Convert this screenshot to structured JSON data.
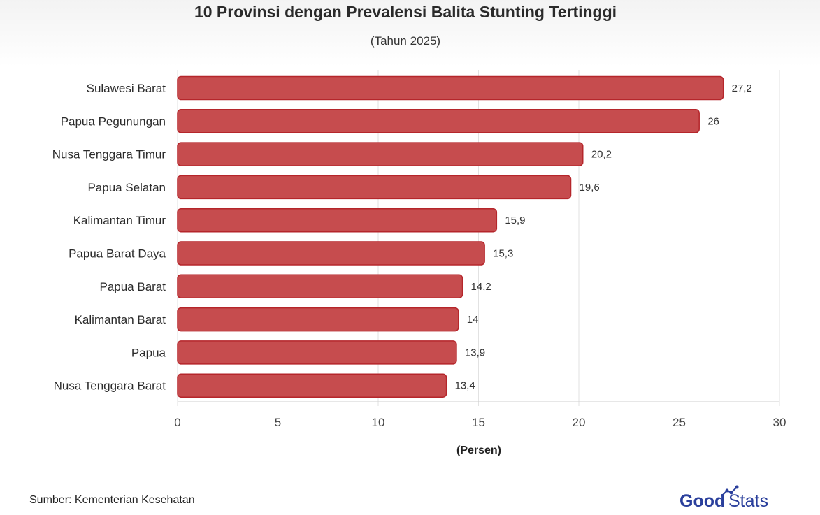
{
  "chart_data": {
    "type": "bar",
    "orientation": "horizontal",
    "title": "10 Provinsi dengan Prevalensi Balita Stunting Tertinggi",
    "subtitle": "(Tahun 2025)",
    "xlabel": "(Persen)",
    "ylabel": "",
    "categories": [
      "Sulawesi Barat",
      "Papua Pegunungan",
      "Nusa Tenggara Timur",
      "Papua Selatan",
      "Kalimantan Timur",
      "Papua Barat Daya",
      "Papua Barat",
      "Kalimantan Barat",
      "Papua",
      "Nusa Tenggara Barat"
    ],
    "values": [
      27.2,
      26,
      20.2,
      19.6,
      15.9,
      15.3,
      14.2,
      14,
      13.9,
      13.4
    ],
    "value_labels": [
      "27,2",
      "26",
      "20,2",
      "19,6",
      "15,9",
      "15,3",
      "14,2",
      "14",
      "13,9",
      "13,4"
    ],
    "xlim": [
      0,
      30
    ],
    "ticks": [
      0,
      5,
      10,
      15,
      20,
      25,
      30
    ],
    "grid": true,
    "legend": "none",
    "bar_color": "#c64c4e",
    "bar_border_color": "#b5262b"
  },
  "footer": {
    "source": "Sumber: Kementerian Kesehatan",
    "brand_logo": "GoodStats"
  }
}
